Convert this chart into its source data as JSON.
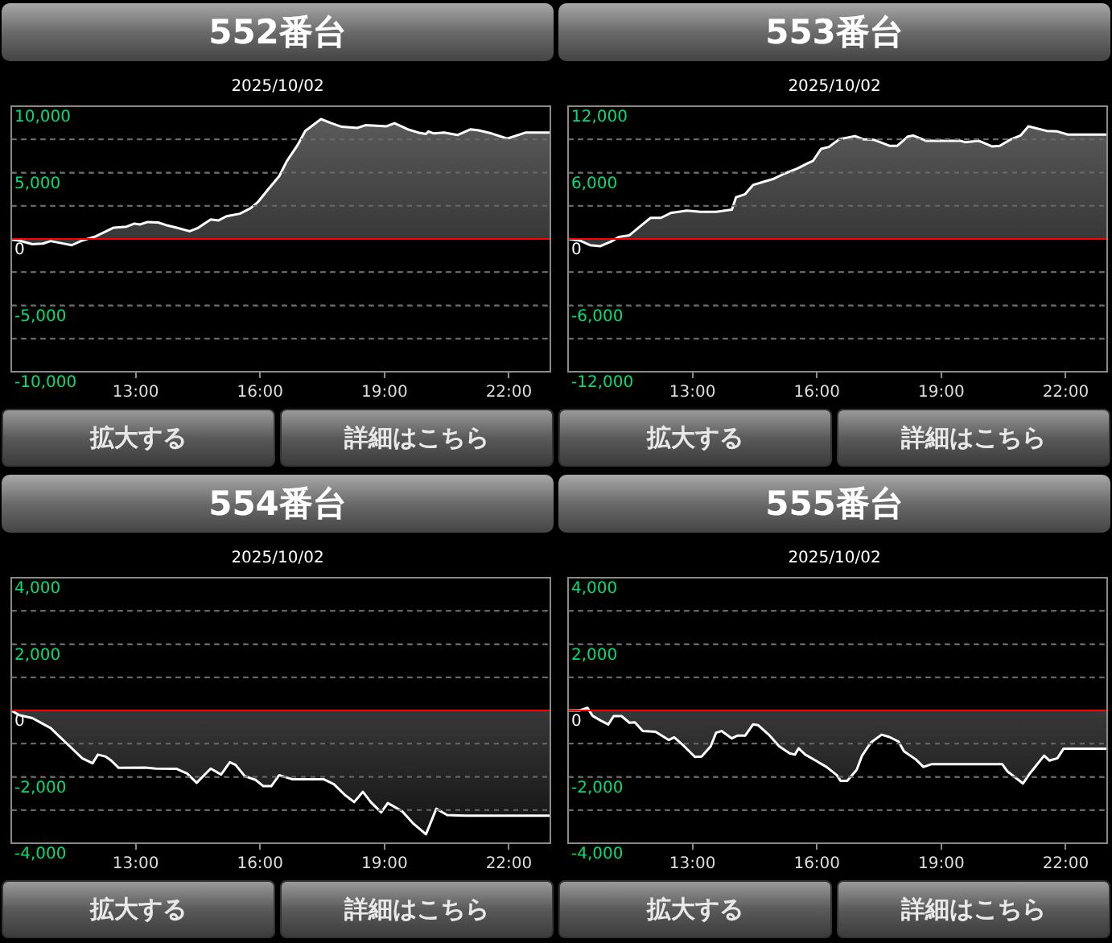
{
  "chart_data": [
    {
      "type": "area",
      "title": "552番台",
      "subtitle": "2025/10/02",
      "xlim": [
        10,
        23
      ],
      "xticks": [
        {
          "value": 13,
          "label": "13:00"
        },
        {
          "value": 16,
          "label": "16:00"
        },
        {
          "value": 19,
          "label": "19:00"
        },
        {
          "value": 22,
          "label": "22:00"
        }
      ],
      "ylim": [
        -10000,
        10000
      ],
      "yticks": [
        {
          "value": -10000,
          "label": "-10,000"
        },
        {
          "value": -7500,
          "label": null
        },
        {
          "value": -5000,
          "label": "-5,000"
        },
        {
          "value": -2500,
          "label": null
        },
        {
          "value": 0,
          "label": "0"
        },
        {
          "value": 2500,
          "label": null
        },
        {
          "value": 5000,
          "label": "5,000"
        },
        {
          "value": 7500,
          "label": null
        },
        {
          "value": 10000,
          "label": "10,000"
        }
      ],
      "grid": "y",
      "legend": false,
      "marker": "none",
      "ref_lines": [
        {
          "axis": "y",
          "value": 0,
          "color": "#ff0000"
        }
      ],
      "annotations": [
        "拡大する",
        "詳細はこちら"
      ],
      "series": [
        {
          "color": "#ffffff",
          "x": [
            10,
            10.19,
            10.51,
            10.76,
            10.95,
            11.2,
            11.46,
            11.71,
            12.03,
            12.47,
            12.78,
            12.97,
            13.1,
            13.29,
            13.54,
            13.73,
            13.99,
            14.3,
            14.49,
            14.81,
            15,
            15.19,
            15.51,
            15.76,
            15.95,
            16.2,
            16.46,
            16.65,
            16.9,
            17.09,
            17.47,
            17.72,
            17.97,
            18.35,
            18.54,
            18.8,
            19.05,
            19.24,
            19.56,
            19.81,
            20,
            20.06,
            20.19,
            20.44,
            20.76,
            21.08,
            21.27,
            21.58,
            21.96,
            22.41,
            23
          ],
          "values": [
            -40,
            -120,
            -390,
            -350,
            -160,
            -310,
            -470,
            -120,
            190,
            850,
            930,
            1160,
            1090,
            1280,
            1240,
            1050,
            850,
            580,
            810,
            1470,
            1400,
            1710,
            1900,
            2290,
            2790,
            3760,
            4730,
            5890,
            7050,
            8140,
            9030,
            8720,
            8450,
            8370,
            8570,
            8530,
            8490,
            8720,
            8260,
            8020,
            7910,
            8100,
            7950,
            8020,
            7830,
            8260,
            8180,
            7950,
            7560,
            8020,
            8020
          ]
        }
      ]
    },
    {
      "type": "area",
      "title": "553番台",
      "subtitle": "2025/10/02",
      "xlim": [
        10,
        23
      ],
      "xticks": [
        {
          "value": 13,
          "label": "13:00"
        },
        {
          "value": 16,
          "label": "16:00"
        },
        {
          "value": 19,
          "label": "19:00"
        },
        {
          "value": 22,
          "label": "22:00"
        }
      ],
      "ylim": [
        -12000,
        12000
      ],
      "yticks": [
        {
          "value": -12000,
          "label": "-12,000"
        },
        {
          "value": -9000,
          "label": null
        },
        {
          "value": -6000,
          "label": "-6,000"
        },
        {
          "value": -3000,
          "label": null
        },
        {
          "value": 0,
          "label": "0"
        },
        {
          "value": 3000,
          "label": null
        },
        {
          "value": 6000,
          "label": "6,000"
        },
        {
          "value": 9000,
          "label": null
        },
        {
          "value": 12000,
          "label": "12,000"
        }
      ],
      "grid": "y",
      "legend": false,
      "marker": "none",
      "ref_lines": [
        {
          "axis": "y",
          "value": 0,
          "color": "#ff0000"
        }
      ],
      "annotations": [
        "拡大する",
        "詳細はこちら"
      ],
      "series": [
        {
          "color": "#ffffff",
          "x": [
            10,
            10.28,
            10.53,
            10.78,
            11.04,
            11.23,
            11.48,
            11.73,
            11.99,
            12.24,
            12.49,
            12.87,
            13.19,
            13.57,
            13.95,
            14.05,
            14.27,
            14.46,
            14.71,
            14.96,
            15.22,
            15.53,
            15.78,
            15.91,
            16.1,
            16.29,
            16.54,
            16.92,
            17.11,
            17.37,
            17.75,
            17.94,
            18.19,
            18.32,
            18.63,
            18.95,
            19.27,
            19.46,
            19.58,
            19.9,
            20.22,
            20.41,
            20.66,
            20.91,
            21.1,
            21.54,
            21.8,
            22.05,
            23
          ],
          "values": [
            0,
            -140,
            -560,
            -650,
            -230,
            190,
            330,
            1120,
            1910,
            1910,
            2370,
            2560,
            2460,
            2460,
            2650,
            3770,
            4050,
            4880,
            5160,
            5440,
            5910,
            6370,
            6840,
            7070,
            8140,
            8320,
            9020,
            9300,
            9020,
            8970,
            8420,
            8420,
            9250,
            9350,
            8880,
            8880,
            8880,
            8880,
            8740,
            8880,
            8370,
            8420,
            8970,
            9350,
            10180,
            9770,
            9720,
            9440,
            9440
          ]
        }
      ]
    },
    {
      "type": "area",
      "title": "554番台",
      "subtitle": "2025/10/02",
      "xlim": [
        10,
        23
      ],
      "xticks": [
        {
          "value": 13,
          "label": "13:00"
        },
        {
          "value": 16,
          "label": "16:00"
        },
        {
          "value": 19,
          "label": "19:00"
        },
        {
          "value": 22,
          "label": "22:00"
        }
      ],
      "ylim": [
        -4000,
        4000
      ],
      "yticks": [
        {
          "value": -4000,
          "label": "-4,000"
        },
        {
          "value": -3000,
          "label": null
        },
        {
          "value": -2000,
          "label": "-2,000"
        },
        {
          "value": -1000,
          "label": null
        },
        {
          "value": 0,
          "label": "0"
        },
        {
          "value": 1000,
          "label": null
        },
        {
          "value": 2000,
          "label": "2,000"
        },
        {
          "value": 3000,
          "label": null
        },
        {
          "value": 4000,
          "label": "4,000"
        }
      ],
      "grid": "y",
      "legend": false,
      "marker": "none",
      "ref_lines": [
        {
          "axis": "y",
          "value": 0,
          "color": "#ff0000"
        }
      ],
      "annotations": [
        "拡大する",
        "詳細はこちら"
      ],
      "series": [
        {
          "color": "#ffffff",
          "x": [
            10,
            10.19,
            10.51,
            10.7,
            10.95,
            11.14,
            11.46,
            11.71,
            11.96,
            12.09,
            12.28,
            12.41,
            12.59,
            13.23,
            13.48,
            13.99,
            14.24,
            14.47,
            14.81,
            15.06,
            15.27,
            15.41,
            15.63,
            15.89,
            16.08,
            16.27,
            16.46,
            16.77,
            17.53,
            17.78,
            18.04,
            18.27,
            18.48,
            18.67,
            18.92,
            19.08,
            19.43,
            19.68,
            20,
            20.25,
            20.51,
            20.95,
            23
          ],
          "values": [
            0,
            -140,
            -230,
            -360,
            -530,
            -760,
            -1140,
            -1440,
            -1590,
            -1330,
            -1390,
            -1510,
            -1730,
            -1720,
            -1750,
            -1760,
            -1900,
            -2180,
            -1750,
            -1930,
            -1560,
            -1640,
            -1980,
            -2090,
            -2280,
            -2280,
            -1950,
            -2070,
            -2070,
            -2220,
            -2540,
            -2760,
            -2450,
            -2760,
            -3070,
            -2790,
            -3040,
            -3390,
            -3730,
            -2960,
            -3150,
            -3170,
            -3170
          ]
        }
      ]
    },
    {
      "type": "area",
      "title": "555番台",
      "subtitle": "2025/10/02",
      "xlim": [
        10,
        23
      ],
      "xticks": [
        {
          "value": 13,
          "label": "13:00"
        },
        {
          "value": 16,
          "label": "16:00"
        },
        {
          "value": 19,
          "label": "19:00"
        },
        {
          "value": 22,
          "label": "22:00"
        }
      ],
      "ylim": [
        -4000,
        4000
      ],
      "yticks": [
        {
          "value": -4000,
          "label": "-4,000"
        },
        {
          "value": -3000,
          "label": null
        },
        {
          "value": -2000,
          "label": "-2,000"
        },
        {
          "value": -1000,
          "label": null
        },
        {
          "value": 0,
          "label": "0"
        },
        {
          "value": 1000,
          "label": null
        },
        {
          "value": 2000,
          "label": "2,000"
        },
        {
          "value": 3000,
          "label": null
        },
        {
          "value": 4000,
          "label": "4,000"
        }
      ],
      "grid": "y",
      "legend": false,
      "marker": "none",
      "ref_lines": [
        {
          "axis": "y",
          "value": 0,
          "color": "#ff0000"
        }
      ],
      "annotations": [
        "拡大する",
        "詳細はこちら"
      ],
      "series": [
        {
          "color": "#ffffff",
          "x": [
            10,
            10.28,
            10.47,
            10.59,
            10.78,
            10.97,
            11.1,
            11.29,
            11.48,
            11.61,
            11.8,
            12.11,
            12.43,
            12.56,
            12.81,
            13.06,
            13.22,
            13.44,
            13.57,
            13.7,
            13.95,
            14.08,
            14.27,
            14.46,
            14.58,
            14.84,
            15.09,
            15.34,
            15.47,
            15.56,
            15.72,
            15.97,
            16.23,
            16.48,
            16.57,
            16.73,
            16.96,
            17.09,
            17.3,
            17.56,
            17.75,
            17.97,
            18.1,
            18.38,
            18.57,
            18.76,
            20.47,
            20.59,
            20.97,
            21.14,
            21.48,
            21.61,
            21.8,
            21.95,
            23
          ],
          "values": [
            0,
            0,
            80,
            -160,
            -300,
            -420,
            -170,
            -170,
            -370,
            -360,
            -620,
            -640,
            -890,
            -810,
            -1090,
            -1400,
            -1390,
            -1080,
            -670,
            -620,
            -840,
            -760,
            -760,
            -420,
            -440,
            -730,
            -1080,
            -1290,
            -1330,
            -1140,
            -1330,
            -1510,
            -1700,
            -1950,
            -2120,
            -2120,
            -1790,
            -1360,
            -970,
            -730,
            -800,
            -940,
            -1230,
            -1470,
            -1700,
            -1620,
            -1620,
            -1830,
            -2200,
            -1890,
            -1360,
            -1510,
            -1440,
            -1150,
            -1150
          ]
        }
      ]
    }
  ]
}
